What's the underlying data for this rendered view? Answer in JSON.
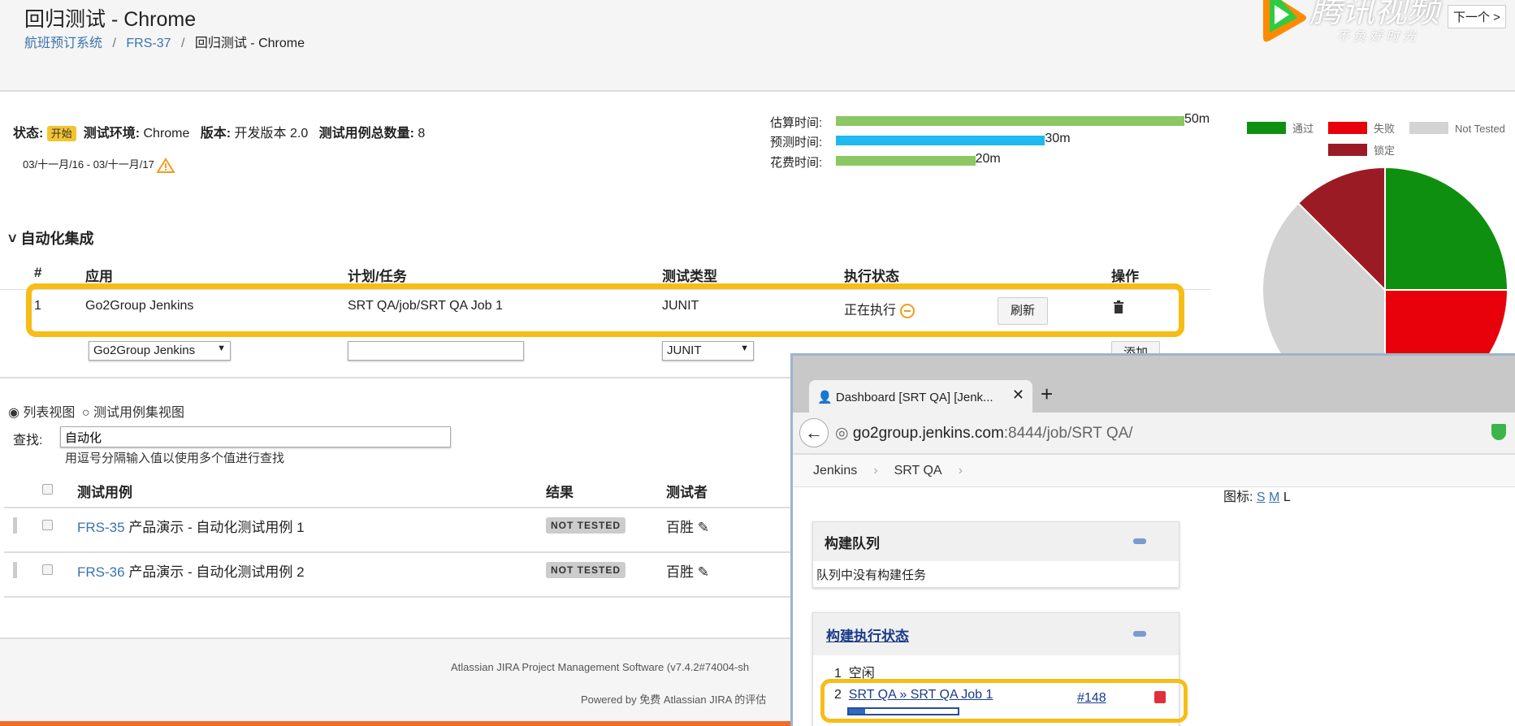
{
  "header": {
    "title": "回归测试 - Chrome",
    "breadcrumb": [
      "航班预订系统",
      "FRS-37",
      "回归测试 - Chrome"
    ],
    "next_label": "下一个 >"
  },
  "watermark": {
    "brand": "腾讯视频",
    "slogan": "不 负 好 时 光"
  },
  "summary": {
    "status_label": "状态:",
    "status_value": "开始",
    "env_label": "测试环境:",
    "env_value": "Chrome",
    "version_label": "版本:",
    "version_value": "开发版本 2.0",
    "count_label": "测试用例总数量:",
    "count_value": "8",
    "date_range": "03/十一月/16 - 03/十一月/17"
  },
  "time_bars": [
    {
      "label": "估算时间:",
      "value": "50m",
      "minutes": 50,
      "color": "#8cc862"
    },
    {
      "label": "预测时间:",
      "value": "30m",
      "minutes": 30,
      "color": "#1fb8ef"
    },
    {
      "label": "花费时间:",
      "value": "20m",
      "minutes": 20,
      "color": "#8cc862"
    }
  ],
  "chart_data": {
    "type": "pie",
    "legend_placement": "top",
    "categories": [
      "通过",
      "失败",
      "Not Tested",
      "锁定"
    ],
    "values": [
      2,
      2,
      3,
      1
    ],
    "colors": [
      "#0f8f0f",
      "#e8000b",
      "#d3d3d3",
      "#9b1b24"
    ]
  },
  "automation": {
    "section_title": "自动化集成",
    "columns": [
      "#",
      "应用",
      "计划/任务",
      "测试类型",
      "执行状态",
      "操作"
    ],
    "rows": [
      {
        "num": "1",
        "app": "Go2Group Jenkins",
        "job": "SRT QA/job/SRT QA Job 1",
        "type": "JUNIT",
        "status": "正在执行",
        "refresh": "刷新"
      }
    ],
    "form": {
      "app_select": "Go2Group Jenkins",
      "job_input": "",
      "type_select": "JUNIT",
      "add_label": "添加"
    }
  },
  "view": {
    "list_view": "列表视图",
    "set_view": "测试用例集视图",
    "search_label": "查找:",
    "search_value": "自动化",
    "search_hint": "用逗号分隔输入值以使用多个值进行查找"
  },
  "tests": {
    "columns": [
      "测试用例",
      "结果",
      "测试者"
    ],
    "rows": [
      {
        "key": "FRS-35",
        "title": "产品演示 - 自动化测试用例 1",
        "result": "NOT TESTED",
        "tester": "百胜"
      },
      {
        "key": "FRS-36",
        "title": "产品演示 - 自动化测试用例 2",
        "result": "NOT TESTED",
        "tester": "百胜"
      }
    ]
  },
  "footer": {
    "line1": "Atlassian JIRA Project Management Software (v7.4.2#74004-sh",
    "line2": "Powered by 免费 Atlassian JIRA 的评估"
  },
  "jenkins": {
    "tab_title": "Dashboard [SRT QA] [Jenk...",
    "url_host": "go2group.jenkins.com",
    "url_path": ":8444/job/SRT QA/",
    "breadcrumb": [
      "Jenkins",
      "SRT QA"
    ],
    "icon_size_label": "图标:",
    "icon_sizes": [
      "S",
      "M",
      "L"
    ],
    "queue_title": "构建队列",
    "queue_empty": "队列中没有构建任务",
    "executor_title": "构建执行状态",
    "executors": [
      {
        "num": "1",
        "label": "空闲"
      },
      {
        "num": "2",
        "label": "SRT QA » SRT QA Job 1",
        "build": "#148"
      }
    ],
    "progress": 0.15
  }
}
